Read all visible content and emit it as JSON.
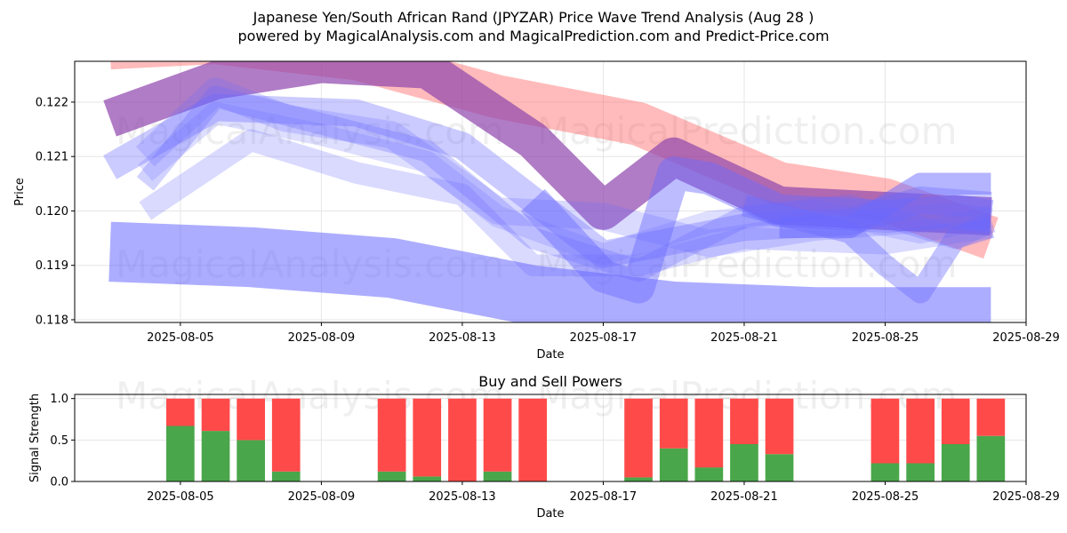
{
  "title_line1": "Japanese Yen/South African Rand (JPYZAR) Price Wave Trend Analysis (Aug 28 )",
  "title_line2": "powered by MagicalAnalysis.com and MagicalPrediction.com and Predict-Price.com",
  "watermarks": [
    "MagicalAnalysis.com",
    "MagicalPrediction.com"
  ],
  "colors": {
    "red": "#ff5555",
    "blue": "#6a6aff",
    "purple": "#8e44ad",
    "buy": "#4aa64a",
    "sell": "#ff4a4a"
  },
  "chart_data": [
    {
      "type": "area",
      "title": "",
      "xlabel": "Date",
      "ylabel": "Price",
      "xlim": [
        "2025-08-02",
        "2025-08-29"
      ],
      "ylim": [
        0.11795,
        0.12275
      ],
      "xticks": [
        "2025-08-05",
        "2025-08-09",
        "2025-08-13",
        "2025-08-17",
        "2025-08-21",
        "2025-08-25",
        "2025-08-29"
      ],
      "yticks": [
        0.118,
        0.119,
        0.12,
        0.121,
        0.122
      ],
      "grid": true,
      "series": [
        {
          "color": "red",
          "opacity": 0.4,
          "width": 0.0008,
          "x": [
            "2025-08-03",
            "2025-08-06",
            "2025-08-10",
            "2025-08-14",
            "2025-08-18",
            "2025-08-22",
            "2025-08-25",
            "2025-08-28"
          ],
          "y": [
            0.123,
            0.1231,
            0.1228,
            0.1221,
            0.1216,
            0.1205,
            0.1202,
            0.1195
          ]
        },
        {
          "color": "purple",
          "opacity": 0.7,
          "width": 0.0007,
          "x": [
            "2025-08-03",
            "2025-08-06",
            "2025-08-09",
            "2025-08-12",
            "2025-08-15",
            "2025-08-17",
            "2025-08-19",
            "2025-08-22",
            "2025-08-25",
            "2025-08-28"
          ],
          "y": [
            0.1217,
            0.1224,
            0.1227,
            0.1226,
            0.1213,
            0.12,
            0.121,
            0.1201,
            0.12,
            0.1199
          ]
        },
        {
          "color": "blue",
          "opacity": 0.55,
          "width": 0.0011,
          "x": [
            "2025-08-03",
            "2025-08-07",
            "2025-08-11",
            "2025-08-15",
            "2025-08-19",
            "2025-08-23",
            "2025-08-28"
          ],
          "y": [
            0.11925,
            0.11915,
            0.11895,
            0.11845,
            0.11815,
            0.11805,
            0.11805
          ]
        },
        {
          "color": "blue",
          "opacity": 0.35,
          "width": 0.0005,
          "x": [
            "2025-08-03",
            "2025-08-06",
            "2025-08-10",
            "2025-08-13",
            "2025-08-17",
            "2025-08-21",
            "2025-08-24",
            "2025-08-26",
            "2025-08-28"
          ],
          "y": [
            0.1208,
            0.1219,
            0.1218,
            0.1212,
            0.1192,
            0.1197,
            0.1198,
            0.1202,
            0.1201
          ]
        },
        {
          "color": "blue",
          "opacity": 0.3,
          "width": 0.0004,
          "x": [
            "2025-08-04",
            "2025-08-06",
            "2025-08-09",
            "2025-08-12",
            "2025-08-15",
            "2025-08-18",
            "2025-08-21",
            "2025-08-24",
            "2025-08-27",
            "2025-08-28"
          ],
          "y": [
            0.1205,
            0.1221,
            0.1216,
            0.1211,
            0.1195,
            0.1189,
            0.1199,
            0.1201,
            0.1195,
            0.1198
          ]
        },
        {
          "color": "blue",
          "opacity": 0.25,
          "width": 0.0004,
          "x": [
            "2025-08-04",
            "2025-08-07",
            "2025-08-10",
            "2025-08-13",
            "2025-08-15",
            "2025-08-18",
            "2025-08-21",
            "2025-08-25",
            "2025-08-28"
          ],
          "y": [
            0.12,
            0.1213,
            0.1207,
            0.1203,
            0.119,
            0.119,
            0.1195,
            0.1194,
            0.1197
          ]
        },
        {
          "color": "blue",
          "opacity": 0.22,
          "width": 0.0004,
          "x": [
            "2025-08-04",
            "2025-08-06",
            "2025-08-09",
            "2025-08-12",
            "2025-08-14",
            "2025-08-17",
            "2025-08-20",
            "2025-08-23",
            "2025-08-26",
            "2025-08-28"
          ],
          "y": [
            0.1207,
            0.1218,
            0.1214,
            0.1209,
            0.1199,
            0.1192,
            0.1198,
            0.12,
            0.1196,
            0.1199
          ]
        },
        {
          "color": "blue",
          "opacity": 0.25,
          "width": 0.0005,
          "x": [
            "2025-08-04",
            "2025-08-06",
            "2025-08-08",
            "2025-08-11",
            "2025-08-14",
            "2025-08-17",
            "2025-08-20",
            "2025-08-23",
            "2025-08-27",
            "2025-08-28"
          ],
          "y": [
            0.121,
            0.1222,
            0.1217,
            0.1214,
            0.12,
            0.1199,
            0.1194,
            0.1197,
            0.1199,
            0.1198
          ]
        },
        {
          "color": "blue",
          "opacity": 0.45,
          "width": 0.0006,
          "x": [
            "2025-08-15",
            "2025-08-17",
            "2025-08-18",
            "2025-08-19",
            "2025-08-20",
            "2025-08-22",
            "2025-08-25",
            "2025-08-27",
            "2025-08-28"
          ],
          "y": [
            0.1202,
            0.1188,
            0.1186,
            0.1207,
            0.1206,
            0.12,
            0.1199,
            0.12,
            0.1199
          ]
        },
        {
          "color": "blue",
          "opacity": 0.4,
          "width": 0.0004,
          "x": [
            "2025-08-21",
            "2025-08-24",
            "2025-08-25",
            "2025-08-26",
            "2025-08-27",
            "2025-08-28"
          ],
          "y": [
            0.1201,
            0.1196,
            0.119,
            0.1185,
            0.1195,
            0.1197
          ]
        },
        {
          "color": "blue",
          "opacity": 0.5,
          "width": 0.0004,
          "x": [
            "2025-08-22",
            "2025-08-24",
            "2025-08-26",
            "2025-08-27",
            "2025-08-28"
          ],
          "y": [
            0.1197,
            0.1197,
            0.1205,
            0.1205,
            0.1205
          ]
        }
      ]
    },
    {
      "type": "bar",
      "title": "Buy and Sell Powers",
      "xlabel": "Date",
      "ylabel": "Signal Strength",
      "xlim": [
        "2025-08-02",
        "2025-08-29"
      ],
      "ylim": [
        0,
        1.05
      ],
      "xticks": [
        "2025-08-05",
        "2025-08-09",
        "2025-08-13",
        "2025-08-17",
        "2025-08-21",
        "2025-08-25",
        "2025-08-29"
      ],
      "yticks": [
        "0.0",
        "0.5",
        "1.0"
      ],
      "grid": true,
      "dates": [
        "2025-08-05",
        "2025-08-06",
        "2025-08-07",
        "2025-08-08",
        "2025-08-11",
        "2025-08-12",
        "2025-08-13",
        "2025-08-14",
        "2025-08-15",
        "2025-08-18",
        "2025-08-19",
        "2025-08-20",
        "2025-08-21",
        "2025-08-22",
        "2025-08-25",
        "2025-08-26",
        "2025-08-27",
        "2025-08-28"
      ],
      "buy": [
        0.67,
        0.61,
        0.5,
        0.12,
        0.12,
        0.06,
        0.0,
        0.12,
        0.0,
        0.05,
        0.4,
        0.17,
        0.45,
        0.33,
        0.22,
        0.22,
        0.45,
        0.55
      ],
      "sell": [
        0.33,
        0.39,
        0.5,
        0.88,
        0.88,
        0.94,
        1.0,
        0.88,
        1.0,
        0.95,
        0.6,
        0.83,
        0.55,
        0.67,
        0.78,
        0.78,
        0.55,
        0.45
      ]
    }
  ]
}
